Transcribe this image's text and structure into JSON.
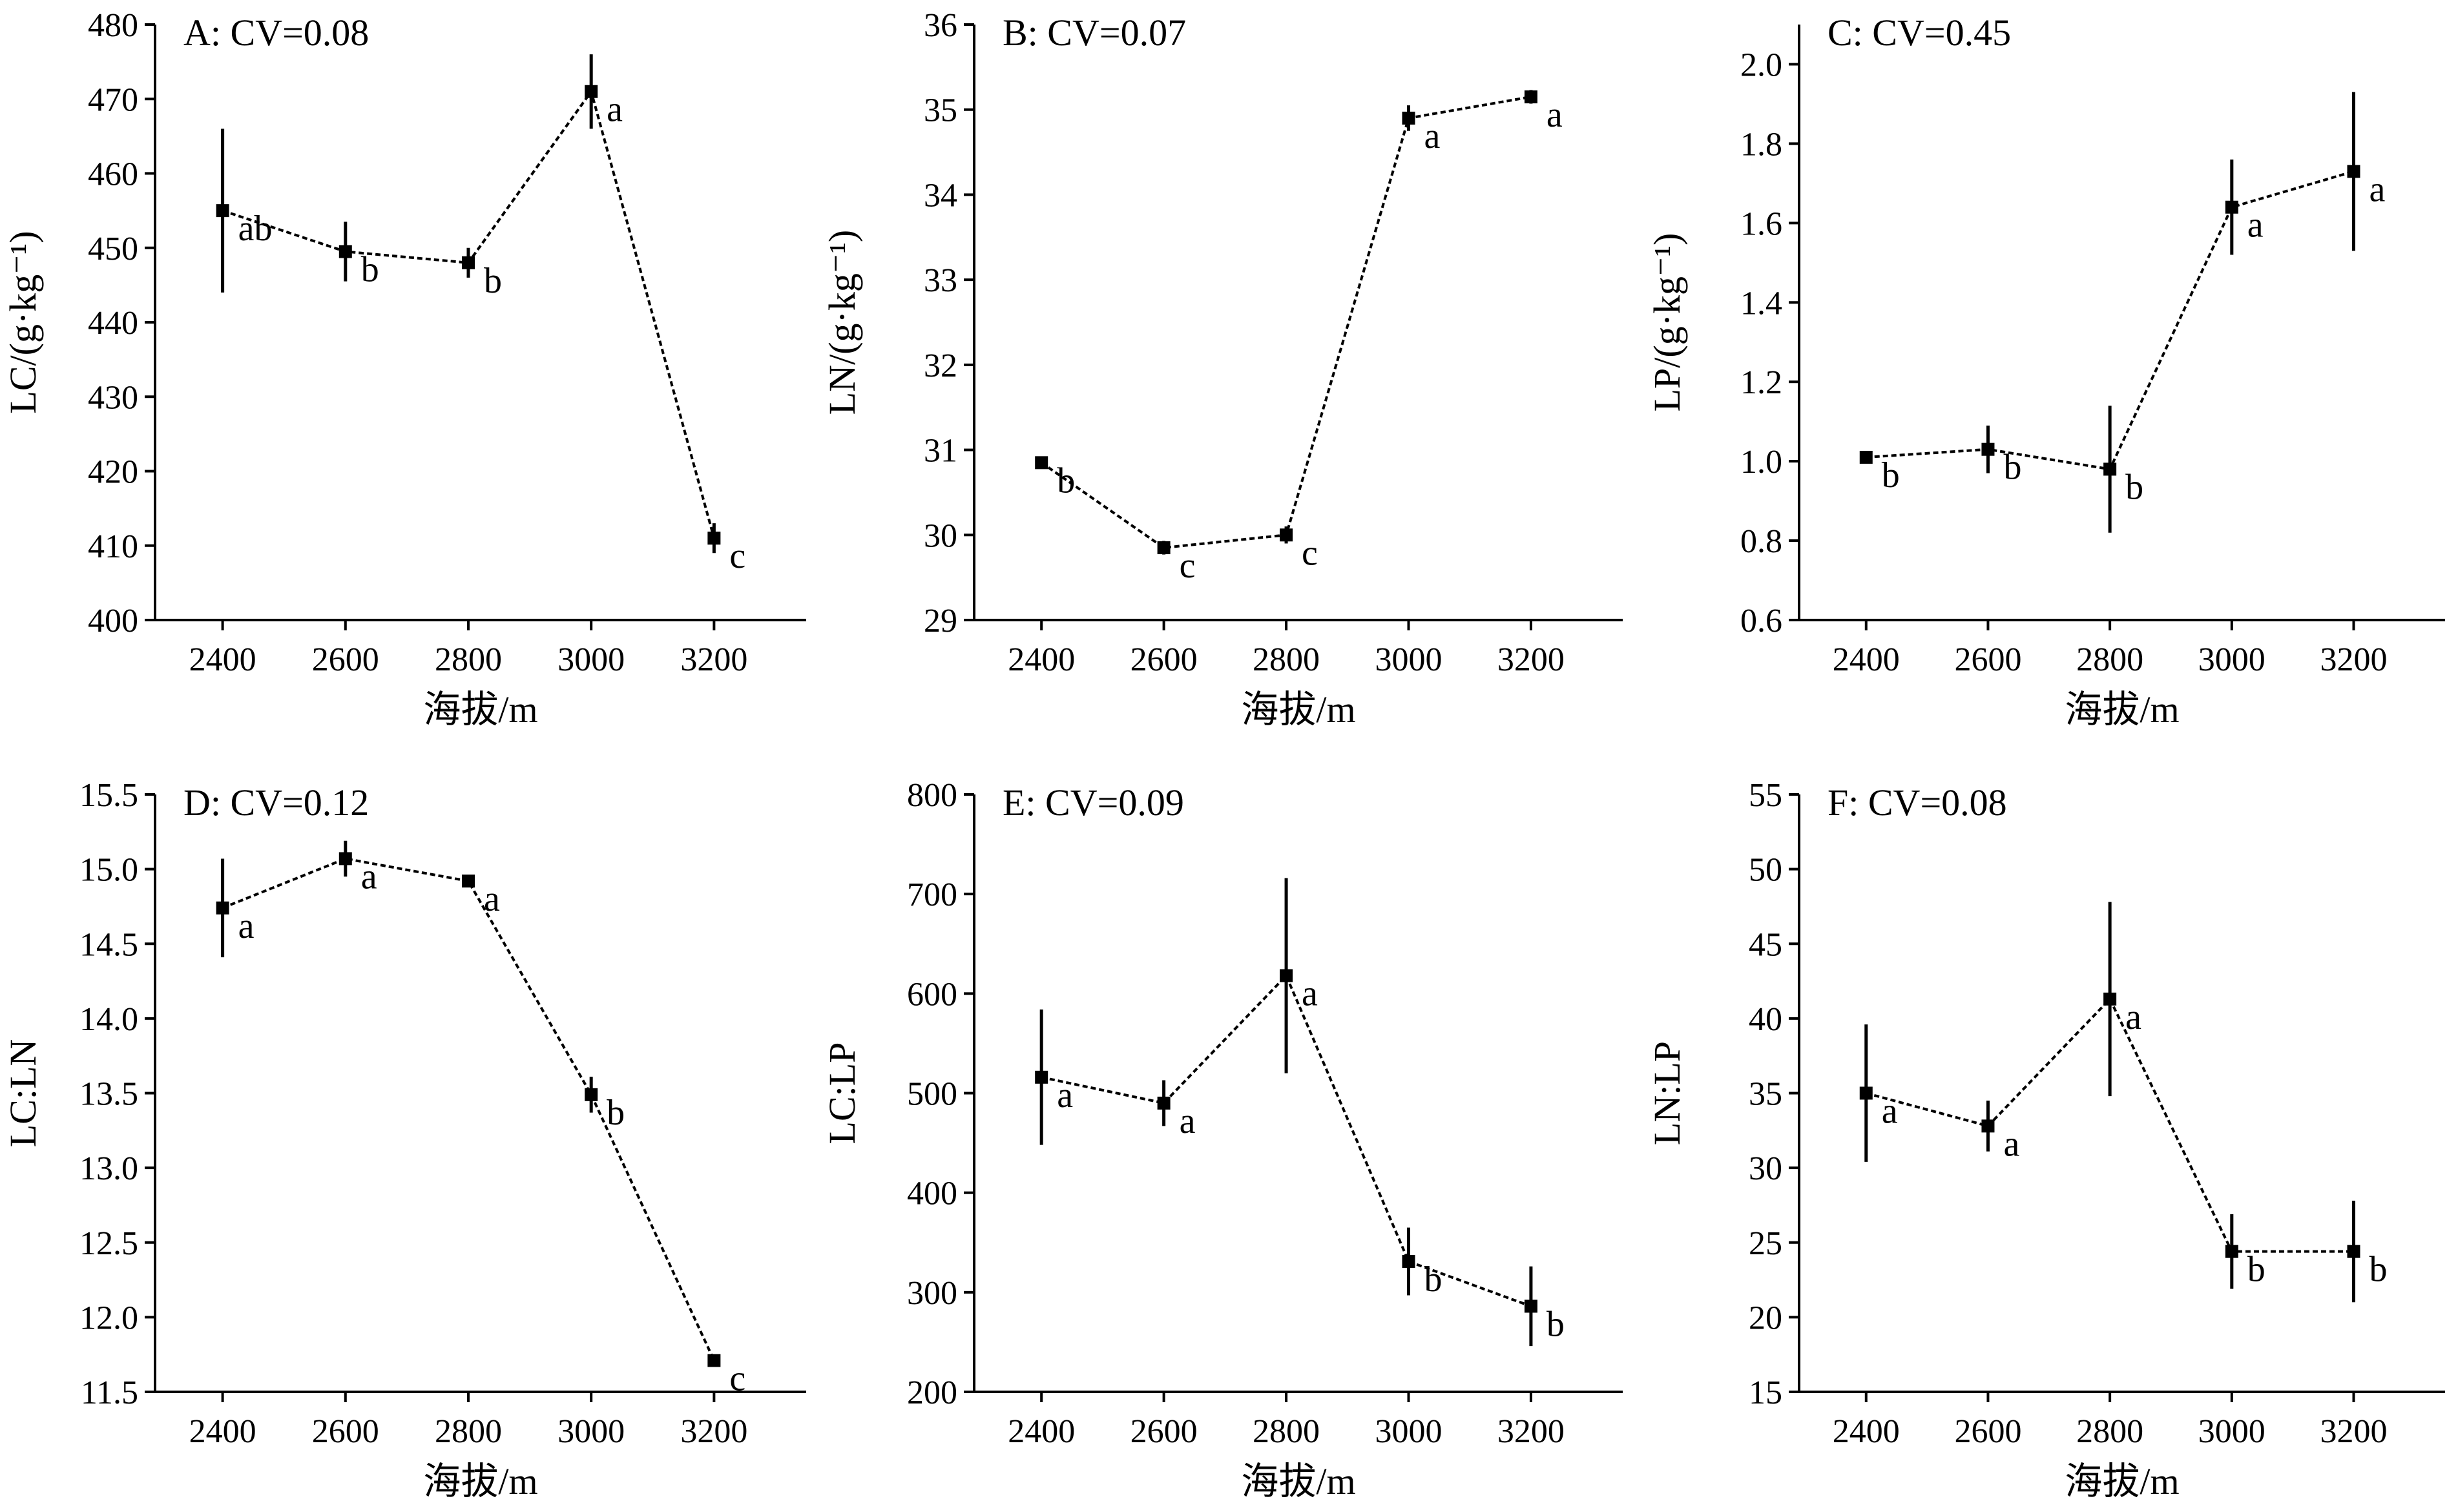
{
  "chart_data": [
    {
      "type": "line",
      "title": "A: CV=0.08",
      "xlabel": "海拔/m",
      "ylabel": "LC/(g·kg⁻¹)",
      "x": [
        2400,
        2600,
        2800,
        3000,
        3200
      ],
      "values": [
        455,
        449.5,
        448,
        471,
        411
      ],
      "errors": [
        11,
        4,
        2,
        5,
        2
      ],
      "significance": [
        "ab",
        "b",
        "b",
        "a",
        "c"
      ],
      "xticks": [
        "2400",
        "2600",
        "2800",
        "3000",
        "3200"
      ],
      "yticks": [
        "400",
        "410",
        "420",
        "430",
        "440",
        "450",
        "460",
        "470",
        "480"
      ],
      "ylim": [
        400,
        480
      ],
      "grid": false
    },
    {
      "type": "line",
      "title": "B: CV=0.07",
      "xlabel": "海拔/m",
      "ylabel": "LN/(g·kg⁻¹)",
      "x": [
        2400,
        2600,
        2800,
        3000,
        3200
      ],
      "values": [
        30.85,
        29.85,
        30.0,
        34.9,
        35.15
      ],
      "errors": [
        0.05,
        0.08,
        0.1,
        0.15,
        0.08
      ],
      "significance": [
        "b",
        "c",
        "c",
        "a",
        "a"
      ],
      "xticks": [
        "2400",
        "2600",
        "2800",
        "3000",
        "3200"
      ],
      "yticks": [
        "29",
        "30",
        "31",
        "32",
        "33",
        "34",
        "35",
        "36"
      ],
      "ylim": [
        29,
        36
      ],
      "grid": false
    },
    {
      "type": "line",
      "title": "C: CV=0.45",
      "xlabel": "海拔/m",
      "ylabel": "LP/(g·kg⁻¹)",
      "x": [
        2400,
        2600,
        2800,
        3000,
        3200
      ],
      "values": [
        1.01,
        1.03,
        0.98,
        1.64,
        1.73
      ],
      "errors": [
        0.01,
        0.06,
        0.16,
        0.12,
        0.2
      ],
      "significance": [
        "b",
        "b",
        "b",
        "a",
        "a"
      ],
      "xticks": [
        "2400",
        "2600",
        "2800",
        "3000",
        "3200"
      ],
      "yticks": [
        "0.6",
        "0.8",
        "1.0",
        "1.2",
        "1.4",
        "1.6",
        "1.8",
        "2.0"
      ],
      "ylim": [
        0.6,
        2.1
      ],
      "grid": false
    },
    {
      "type": "line",
      "title": "D: CV=0.12",
      "xlabel": "海拔/m",
      "ylabel": "LC:LN",
      "x": [
        2400,
        2600,
        2800,
        3000,
        3200
      ],
      "values": [
        14.74,
        15.07,
        14.92,
        13.49,
        11.71
      ],
      "errors": [
        0.33,
        0.12,
        0.03,
        0.12,
        0.03
      ],
      "significance": [
        "a",
        "a",
        "a",
        "b",
        "c"
      ],
      "xticks": [
        "2400",
        "2600",
        "2800",
        "3000",
        "3200"
      ],
      "yticks": [
        "11.5",
        "12.0",
        "12.5",
        "13.0",
        "13.5",
        "14.0",
        "14.5",
        "15.0",
        "15.5"
      ],
      "ylim": [
        11.5,
        15.5
      ],
      "grid": false
    },
    {
      "type": "line",
      "title": "E: CV=0.09",
      "xlabel": "海拔/m",
      "ylabel": "LC:LP",
      "x": [
        2400,
        2600,
        2800,
        3000,
        3200
      ],
      "values": [
        516,
        490,
        618,
        331,
        286
      ],
      "errors": [
        68,
        23,
        98,
        34,
        40
      ],
      "significance": [
        "a",
        "a",
        "a",
        "b",
        "b"
      ],
      "xticks": [
        "2400",
        "2600",
        "2800",
        "3000",
        "3200"
      ],
      "yticks": [
        "200",
        "300",
        "400",
        "500",
        "600",
        "700",
        "800"
      ],
      "ylim": [
        200,
        800
      ],
      "grid": false
    },
    {
      "type": "line",
      "title": "F: CV=0.08",
      "xlabel": "海拔/m",
      "ylabel": "LN:LP",
      "x": [
        2400,
        2600,
        2800,
        3000,
        3200
      ],
      "values": [
        35,
        32.8,
        41.3,
        24.4,
        24.4
      ],
      "errors": [
        4.6,
        1.7,
        6.5,
        2.5,
        3.4
      ],
      "significance": [
        "a",
        "a",
        "a",
        "b",
        "b"
      ],
      "xticks": [
        "2400",
        "2600",
        "2800",
        "3000",
        "3200"
      ],
      "yticks": [
        "15",
        "20",
        "25",
        "30",
        "35",
        "40",
        "45",
        "50",
        "55"
      ],
      "ylim": [
        15,
        55
      ],
      "grid": false
    }
  ]
}
